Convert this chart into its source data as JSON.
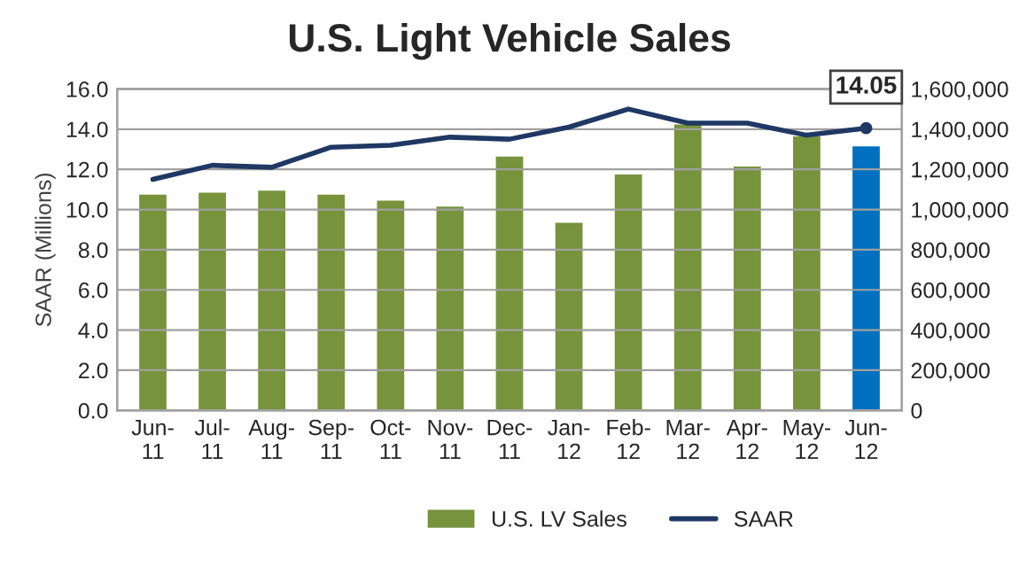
{
  "chart_data": {
    "type": "bar",
    "title": "U.S. Light Vehicle Sales",
    "ylabel": "SAAR (Millions)",
    "categories": [
      "Jun-\n11",
      "Jul-\n11",
      "Aug-\n11",
      "Sep-\n11",
      "Oct-\n11",
      "Nov-\n11",
      "Dec-\n11",
      "Jan-\n12",
      "Feb-\n12",
      "Mar-\n12",
      "Apr-\n12",
      "May-\n12",
      "Jun-\n12"
    ],
    "series": [
      {
        "name": "U.S. LV Sales",
        "axis": "y2",
        "color": "#77933c",
        "colors": [
          "#77933c",
          "#77933c",
          "#77933c",
          "#77933c",
          "#77933c",
          "#77933c",
          "#77933c",
          "#77933c",
          "#77933c",
          "#77933c",
          "#77933c",
          "#77933c",
          "#0070c0"
        ],
        "values": [
          1080000,
          1090000,
          1100000,
          1080000,
          1050000,
          1020000,
          1270000,
          940000,
          1180000,
          1430000,
          1220000,
          1370000,
          1320000
        ]
      },
      {
        "name": "SAAR",
        "type": "line",
        "color": "#1f3864",
        "values": [
          11.5,
          12.2,
          12.1,
          13.1,
          13.2,
          13.6,
          13.5,
          14.1,
          15.0,
          14.3,
          14.3,
          13.7,
          14.05
        ],
        "value_labels": [
          null,
          null,
          null,
          null,
          null,
          null,
          null,
          null,
          null,
          null,
          null,
          null,
          "14.05"
        ]
      }
    ],
    "ylim": [
      0,
      16
    ],
    "yticks": [
      {
        "value": 0,
        "label": "0.0"
      },
      {
        "value": 2,
        "label": "2.0"
      },
      {
        "value": 4,
        "label": "4.0"
      },
      {
        "value": 6,
        "label": "6.0"
      },
      {
        "value": 8,
        "label": "8.0"
      },
      {
        "value": 10,
        "label": "10.0"
      },
      {
        "value": 12,
        "label": "12.0"
      },
      {
        "value": 14,
        "label": "14.0"
      },
      {
        "value": 16,
        "label": "16.0"
      }
    ],
    "y2lim": [
      0,
      1600000
    ],
    "y2ticks": [
      0,
      {
        "value": 200000,
        "label": "200,000"
      },
      {
        "value": 400000,
        "label": "400,000"
      },
      {
        "value": 600000,
        "label": "600,000"
      },
      {
        "value": 800000,
        "label": "800,000"
      },
      {
        "value": 1000000,
        "label": "1,000,000"
      },
      {
        "value": 1200000,
        "label": "1,200,000"
      },
      {
        "value": 1400000,
        "label": "1,400,000"
      },
      {
        "value": 1600000,
        "label": "1,600,000"
      }
    ],
    "grid": "y",
    "legend": "bottom"
  }
}
